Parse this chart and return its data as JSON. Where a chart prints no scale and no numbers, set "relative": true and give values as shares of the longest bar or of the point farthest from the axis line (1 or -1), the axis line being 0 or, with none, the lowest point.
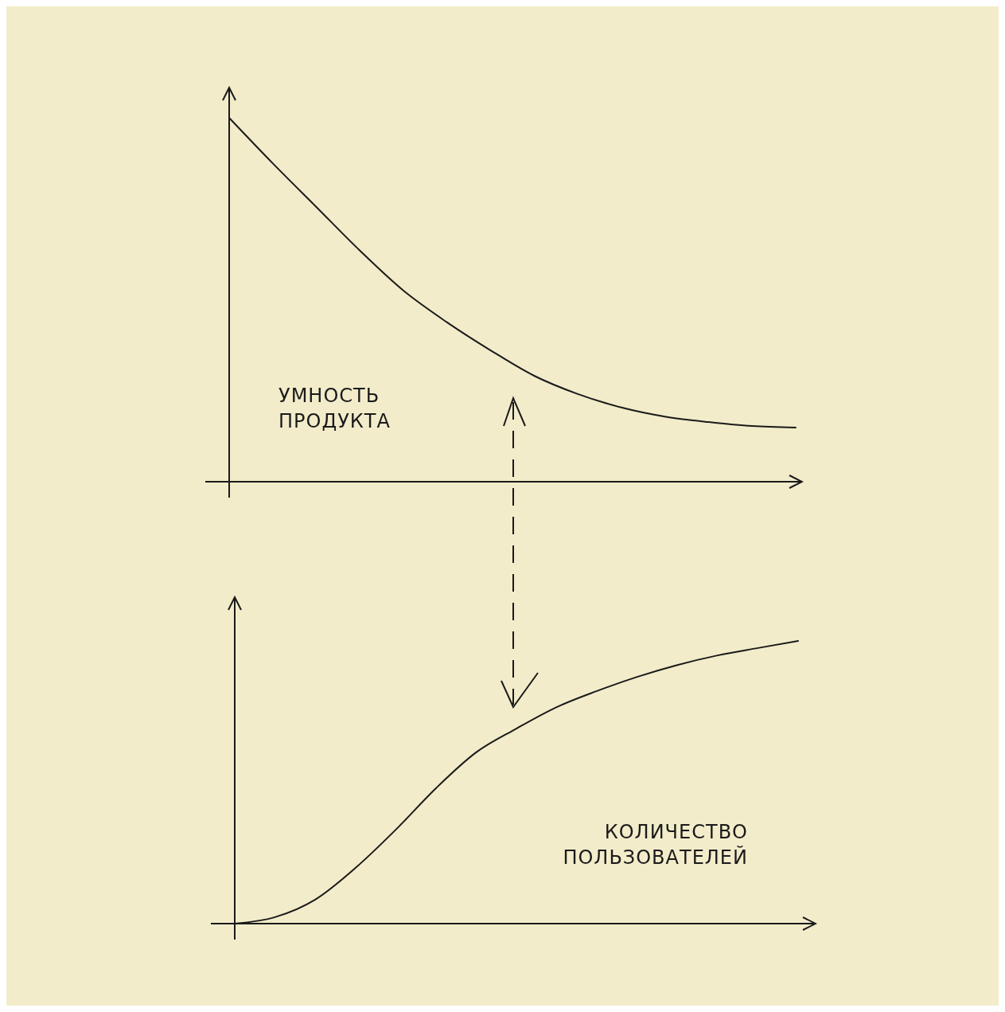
{
  "chart_data": [
    {
      "type": "line",
      "relative": true,
      "categories": [
        null,
        null,
        null,
        null,
        null,
        null,
        null,
        null,
        null,
        null,
        null,
        null,
        null,
        null
      ],
      "series": [
        {
          "color": "#1a1a1a",
          "values": [
            1,
            0.875,
            0.755,
            0.635,
            0.525,
            0.438,
            0.361,
            0.291,
            0.241,
            0.204,
            0.179,
            0.164,
            0.153,
            0.149
          ]
        }
      ],
      "annotations": [
        "УМНОСТЬ ПРОДУКТА"
      ]
    },
    {
      "type": "line",
      "relative": true,
      "categories": [
        null,
        null,
        null,
        null,
        null,
        null,
        null,
        null,
        null,
        null,
        null,
        null,
        null,
        null,
        null
      ],
      "series": [
        {
          "color": "#1a1a1a",
          "values": [
            0,
            0.023,
            0.085,
            0.197,
            0.332,
            0.479,
            0.606,
            0.69,
            0.766,
            0.823,
            0.873,
            0.915,
            0.949,
            0.975,
            1
          ]
        }
      ],
      "annotations": [
        "КОЛИЧЕСТВО ПОЛЬЗОВАТЕЛЕЙ"
      ]
    }
  ]
}
